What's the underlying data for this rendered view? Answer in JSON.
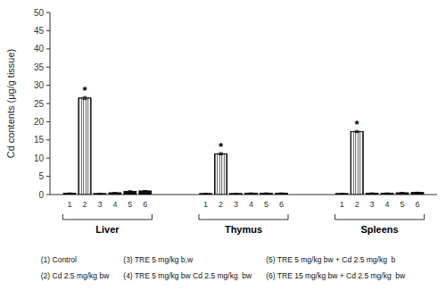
{
  "chart_data": {
    "type": "bar",
    "ylabel": "Cd contents (μg/g tissue)",
    "categories": [
      "1",
      "2",
      "3",
      "4",
      "5",
      "6"
    ],
    "series": [
      {
        "name": "Liver",
        "colors": [
          "#111111",
          "#ffffff",
          "#111111",
          "#111111",
          "#111111",
          "#111111"
        ],
        "values": [
          0.4,
          26.5,
          0.3,
          0.5,
          0.9,
          1.0
        ],
        "errors": [
          0.05,
          0.4,
          0.05,
          0.05,
          0.15,
          0.1
        ]
      },
      {
        "name": "Thymus",
        "colors": [
          "#111111",
          "#ffffff",
          "#111111",
          "#111111",
          "#111111",
          "#111111"
        ],
        "values": [
          0.3,
          11.2,
          0.3,
          0.4,
          0.4,
          0.4
        ],
        "errors": [
          0.05,
          0.3,
          0.05,
          0.05,
          0.05,
          0.05
        ]
      },
      {
        "name": "Spleens",
        "colors": [
          "#111111",
          "#ffffff",
          "#111111",
          "#111111",
          "#111111",
          "#111111"
        ],
        "values": [
          0.3,
          17.3,
          0.4,
          0.4,
          0.5,
          0.6
        ],
        "errors": [
          0.05,
          0.3,
          0.05,
          0.05,
          0.05,
          0.05
        ]
      }
    ],
    "ylim": [
      0,
      50
    ],
    "yticks": [
      0,
      5,
      10,
      15,
      20,
      25,
      30,
      35,
      40,
      45,
      50
    ],
    "grid": false,
    "annotations": [
      {
        "text": "*",
        "series": "Liver",
        "category": "2"
      },
      {
        "text": "*",
        "series": "Thymus",
        "category": "2"
      },
      {
        "text": "*",
        "series": "Spleens",
        "category": "2"
      },
      {
        "text": "(1) Control"
      },
      {
        "text": "(3) TRE 5 mg/kg b,w"
      },
      {
        "text": "(5) TRE 5 mg/kg bw + Cd 2.5 mg/kg  b"
      },
      {
        "text": "(2) Cd 2.5 mg/kg bw"
      },
      {
        "text": "(4) TRE 5 mg/kg bw Cd 2.5 mg/kg  bw"
      },
      {
        "text": "(6) TRE 15 mg/kg bw + Cd 2.5 mg/kg  bw"
      }
    ]
  }
}
